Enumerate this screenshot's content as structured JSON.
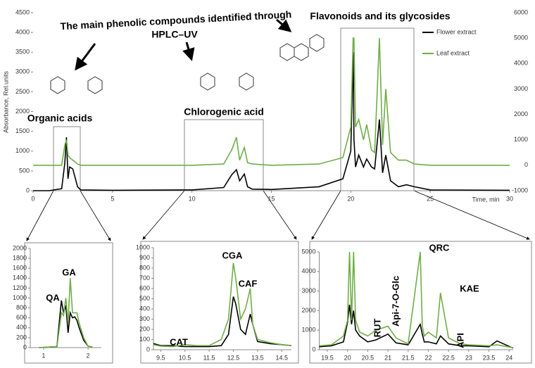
{
  "chart_data": [
    {
      "type": "line",
      "title": [
        "The main  phenolic compounds identified through",
        "HPLC–UV"
      ],
      "annotations": [
        "Flavonoids and its glycosides",
        "Organic acids",
        "Chlorogenic acid"
      ],
      "xlabel": "Time, min",
      "ylabel": "Absorbance, Rel.units",
      "x": [
        0,
        1,
        1.8,
        2.0,
        2.1,
        2.2,
        2.3,
        2.5,
        2.8,
        3,
        5,
        10,
        12,
        12.5,
        12.8,
        13.0,
        13.3,
        13.5,
        13.8,
        15,
        18,
        19.5,
        20,
        20.15,
        20.2,
        20.3,
        20.5,
        20.8,
        21,
        21.3,
        21.5,
        21.8,
        22,
        22.2,
        22.5,
        23,
        23.5,
        24,
        25,
        30
      ],
      "series": [
        {
          "name": "Flower extract",
          "color": "#000000",
          "values": [
            0,
            0,
            50,
            700,
            1350,
            300,
            600,
            550,
            100,
            20,
            10,
            20,
            80,
            400,
            530,
            250,
            420,
            100,
            40,
            30,
            100,
            300,
            1000,
            3500,
            1300,
            600,
            900,
            600,
            800,
            600,
            550,
            1800,
            450,
            900,
            250,
            100,
            150,
            100,
            20,
            10
          ]
        },
        {
          "name": "Leaf extract",
          "color": "#70ad47",
          "axis": "y2",
          "values": [
            0,
            0,
            0,
            800,
            1000,
            400,
            300,
            200,
            50,
            0,
            0,
            0,
            50,
            600,
            1100,
            200,
            700,
            100,
            50,
            0,
            50,
            300,
            1500,
            5000,
            5000,
            1500,
            1800,
            1000,
            1600,
            600,
            500,
            5000,
            800,
            3000,
            500,
            200,
            200,
            50,
            0,
            0
          ]
        }
      ],
      "xlim": [
        0,
        30
      ],
      "xticks": [
        0,
        5,
        10,
        15,
        20,
        25,
        30
      ],
      "ylim": [
        0,
        4500
      ],
      "yticks": [
        0,
        500,
        1000,
        1500,
        2000,
        2500,
        3000,
        3500,
        4000,
        4500
      ],
      "y2lim": [
        -1000,
        6000
      ],
      "y2ticks": [
        -1000,
        0,
        1000,
        2000,
        3000,
        4000,
        5000,
        6000
      ],
      "legend": "top-right"
    },
    {
      "type": "line",
      "annotations": [
        "QA",
        "GA"
      ],
      "x": [
        0.9,
        1.3,
        1.4,
        1.45,
        1.5,
        1.55,
        1.6,
        1.65,
        1.7,
        1.75,
        1.8,
        1.9,
        2.0,
        2.1
      ],
      "series": [
        {
          "color": "#000000",
          "values": [
            0,
            20,
            950,
            700,
            850,
            300,
            700,
            600,
            620,
            550,
            400,
            150,
            30,
            10
          ]
        },
        {
          "color": "#70ad47",
          "values": [
            0,
            20,
            700,
            650,
            1000,
            500,
            1400,
            700,
            700,
            700,
            500,
            200,
            30,
            10
          ]
        }
      ],
      "xlim": [
        0.7,
        2.3
      ],
      "xticks": [
        1,
        2
      ],
      "ylim": [
        0,
        2000
      ],
      "yticks": [
        0,
        200,
        400,
        600,
        800,
        1000,
        1200,
        1400,
        1600,
        1800,
        2000
      ]
    },
    {
      "type": "line",
      "annotations": [
        "CAT",
        "CGA",
        "CAF"
      ],
      "x": [
        9.2,
        9.5,
        10,
        10.5,
        11,
        11.5,
        12,
        12.3,
        12.5,
        12.6,
        12.8,
        13,
        13.2,
        13.3,
        13.5,
        14,
        14.5,
        14.9
      ],
      "series": [
        {
          "color": "#000000",
          "values": [
            60,
            40,
            40,
            30,
            30,
            30,
            40,
            150,
            520,
            450,
            200,
            150,
            350,
            250,
            80,
            60,
            50,
            40
          ]
        },
        {
          "color": "#70ad47",
          "values": [
            50,
            35,
            30,
            50,
            40,
            40,
            100,
            300,
            850,
            700,
            300,
            400,
            600,
            250,
            100,
            70,
            50,
            40
          ]
        }
      ],
      "xlim": [
        9.2,
        14.9
      ],
      "xticks": [
        9.5,
        10.5,
        11.5,
        12.5,
        13.5,
        14.5
      ],
      "ylim": [
        0,
        1000
      ],
      "yticks": [
        0,
        100,
        200,
        300,
        400,
        500,
        600,
        700,
        800,
        900,
        1000
      ]
    },
    {
      "type": "line",
      "annotations": [
        "RUT",
        "Api-7-O-Glc",
        "QRC",
        "KAE",
        "API"
      ],
      "x": [
        19.3,
        19.6,
        19.9,
        20.0,
        20.05,
        20.1,
        20.15,
        20.2,
        20.3,
        20.5,
        20.7,
        21.0,
        21.2,
        21.5,
        21.8,
        21.85,
        21.9,
        22.0,
        22.2,
        22.3,
        22.5,
        22.8,
        23,
        23.5,
        23.7,
        24.1
      ],
      "series": [
        {
          "color": "#000000",
          "values": [
            150,
            200,
            400,
            1400,
            2300,
            1300,
            2000,
            1000,
            700,
            400,
            500,
            800,
            350,
            250,
            1300,
            800,
            400,
            400,
            300,
            700,
            300,
            200,
            200,
            150,
            450,
            80
          ]
        },
        {
          "color": "#70ad47",
          "values": [
            200,
            250,
            700,
            1500,
            5000,
            1500,
            5000,
            1500,
            900,
            700,
            1000,
            1200,
            600,
            300,
            5000,
            1200,
            700,
            900,
            600,
            2900,
            600,
            300,
            250,
            200,
            250,
            100
          ]
        }
      ],
      "xlim": [
        19.3,
        24.1
      ],
      "xticks": [
        19.5,
        20,
        20.5,
        21,
        21.5,
        22,
        22.5,
        23,
        23.5,
        24
      ],
      "ylim": [
        0,
        5000
      ],
      "yticks": [
        0,
        1000,
        2000,
        3000,
        4000,
        5000
      ]
    }
  ]
}
